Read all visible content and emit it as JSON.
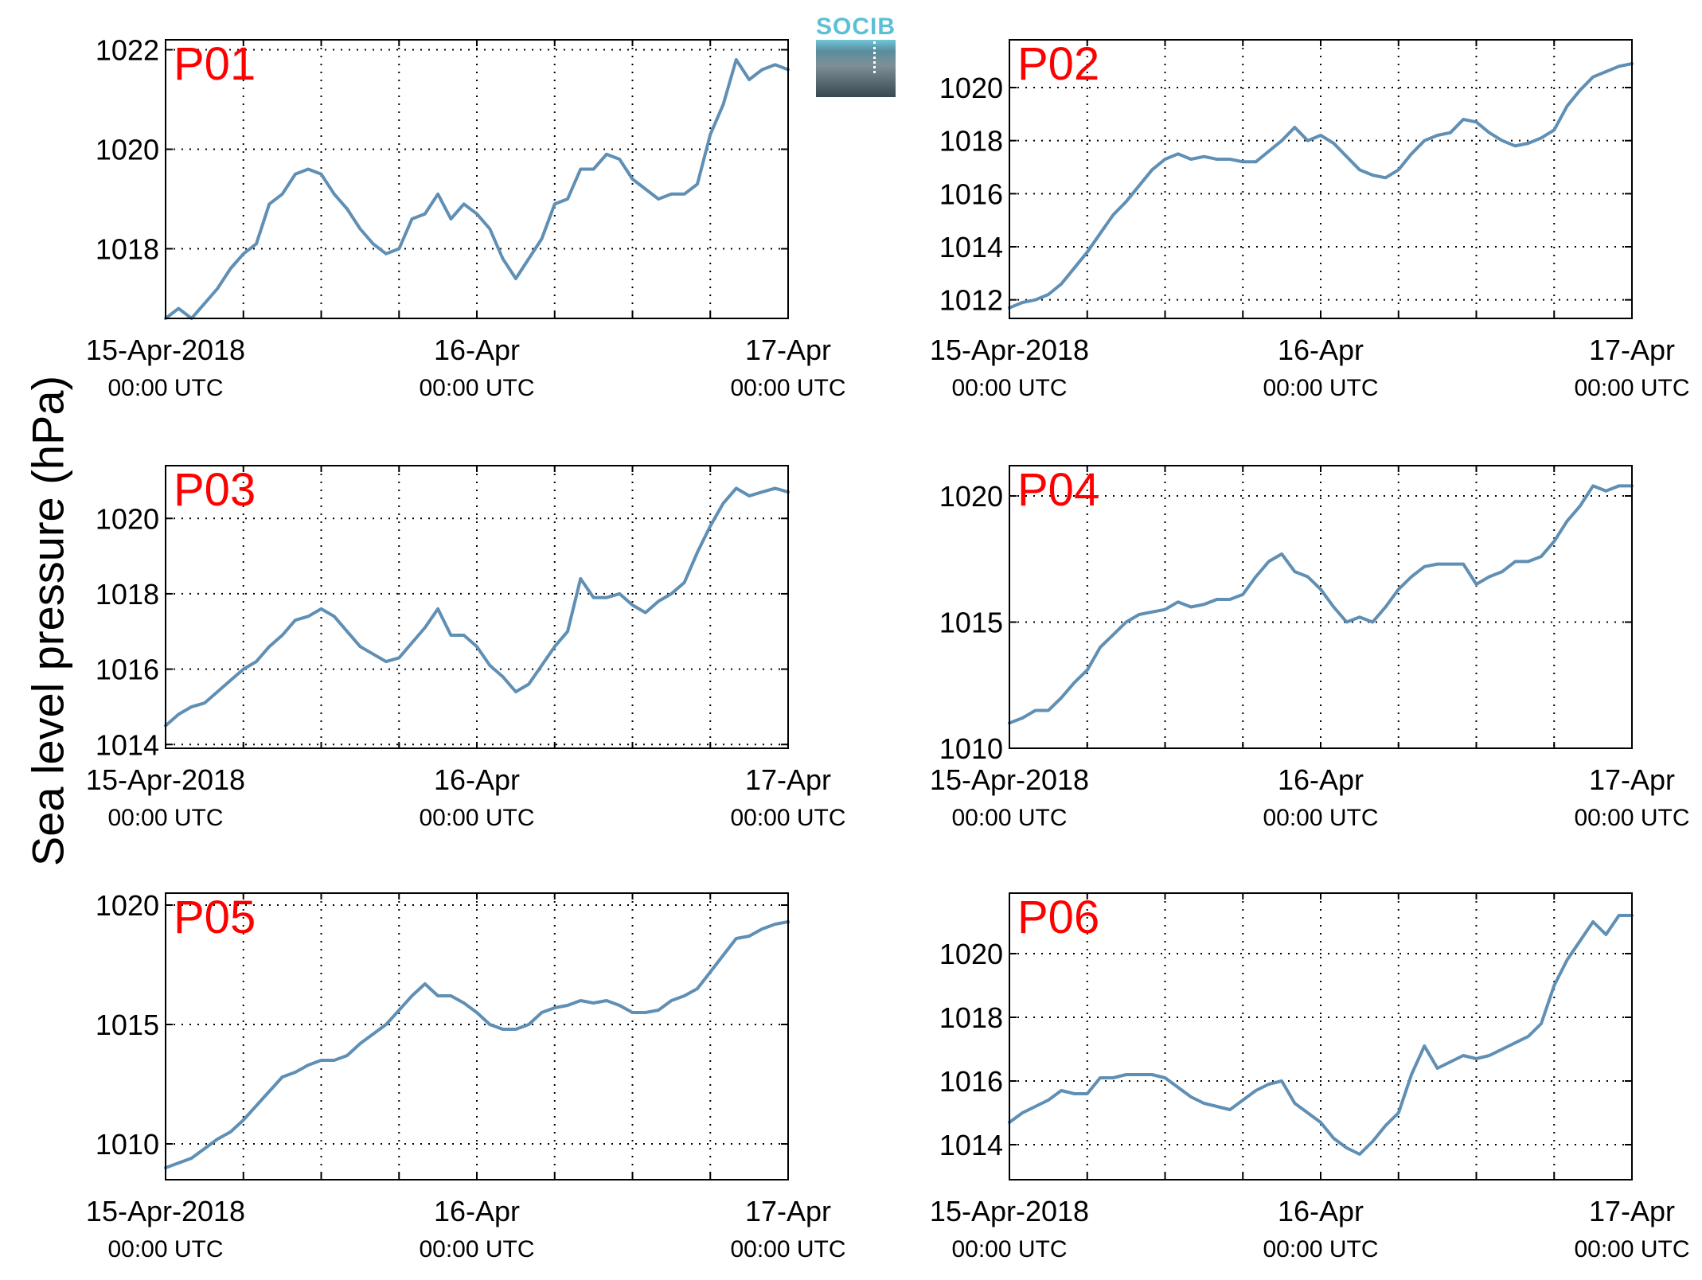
{
  "figure": {
    "ylabel": "Sea level pressure (hPa)",
    "logo_text": "SOCIB",
    "line_color": "#5f8fb4",
    "title_color": "#ff0000"
  },
  "chart_data": [
    {
      "type": "line",
      "title": "P01",
      "xlabel": "",
      "ylabel": "",
      "xlim": [
        "15-Apr-2018 00:00 UTC",
        "17-Apr 00:00 UTC"
      ],
      "x_ticks": [
        {
          "line1": "15-Apr-2018",
          "line2": "00:00 UTC"
        },
        {
          "line1": "16-Apr",
          "line2": "00:00 UTC"
        },
        {
          "line1": "17-Apr",
          "line2": "00:00 UTC"
        }
      ],
      "ylim": [
        1016.6,
        1022.2
      ],
      "yticks": [
        1018,
        1020,
        1022
      ],
      "grid": true,
      "series": [
        {
          "x_hours": [
            0,
            1,
            2,
            3,
            4,
            5,
            6,
            7,
            8,
            9,
            10,
            11,
            12,
            13,
            14,
            15,
            16,
            17,
            18,
            19,
            20,
            21,
            22,
            23,
            24,
            25,
            26,
            27,
            28,
            29,
            30,
            31,
            32,
            33,
            34,
            35,
            36,
            37,
            38,
            39,
            40,
            41,
            42,
            43,
            44,
            45,
            46,
            47,
            48
          ],
          "values": [
            1016.6,
            1016.8,
            1016.6,
            1016.9,
            1017.2,
            1017.6,
            1017.9,
            1018.1,
            1018.9,
            1019.1,
            1019.5,
            1019.6,
            1019.5,
            1019.1,
            1018.8,
            1018.4,
            1018.1,
            1017.9,
            1018.0,
            1018.6,
            1018.7,
            1019.1,
            1018.6,
            1018.9,
            1018.7,
            1018.4,
            1017.8,
            1017.4,
            1017.8,
            1018.2,
            1018.9,
            1019.0,
            1019.6,
            1019.6,
            1019.9,
            1019.8,
            1019.4,
            1019.2,
            1019.0,
            1019.1,
            1019.1,
            1019.3,
            1020.3,
            1020.9,
            1021.8,
            1021.4,
            1021.6,
            1021.7,
            1021.6
          ]
        }
      ]
    },
    {
      "type": "line",
      "title": "P02",
      "xlabel": "",
      "ylabel": "",
      "xlim": [
        "15-Apr-2018 00:00 UTC",
        "17-Apr 00:00 UTC"
      ],
      "x_ticks": [
        {
          "line1": "15-Apr-2018",
          "line2": "00:00 UTC"
        },
        {
          "line1": "16-Apr",
          "line2": "00:00 UTC"
        },
        {
          "line1": "17-Apr",
          "line2": "00:00 UTC"
        }
      ],
      "ylim": [
        1011.3,
        1021.8
      ],
      "yticks": [
        1012,
        1014,
        1016,
        1018,
        1020
      ],
      "grid": true,
      "series": [
        {
          "x_hours": [
            0,
            1,
            2,
            3,
            4,
            5,
            6,
            7,
            8,
            9,
            10,
            11,
            12,
            13,
            14,
            15,
            16,
            17,
            18,
            19,
            20,
            21,
            22,
            23,
            24,
            25,
            26,
            27,
            28,
            29,
            30,
            31,
            32,
            33,
            34,
            35,
            36,
            37,
            38,
            39,
            40,
            41,
            42,
            43,
            44,
            45,
            46,
            47,
            48
          ],
          "values": [
            1011.7,
            1011.9,
            1012.0,
            1012.2,
            1012.6,
            1013.2,
            1013.8,
            1014.5,
            1015.2,
            1015.7,
            1016.3,
            1016.9,
            1017.3,
            1017.5,
            1017.3,
            1017.4,
            1017.3,
            1017.3,
            1017.2,
            1017.2,
            1017.6,
            1018.0,
            1018.5,
            1018.0,
            1018.2,
            1017.9,
            1017.4,
            1016.9,
            1016.7,
            1016.6,
            1016.9,
            1017.5,
            1018.0,
            1018.2,
            1018.3,
            1018.8,
            1018.7,
            1018.3,
            1018.0,
            1017.8,
            1017.9,
            1018.1,
            1018.4,
            1019.3,
            1019.9,
            1020.4,
            1020.6,
            1020.8,
            1020.9
          ]
        }
      ]
    },
    {
      "type": "line",
      "title": "P03",
      "xlabel": "",
      "ylabel": "",
      "xlim": [
        "15-Apr-2018 00:00 UTC",
        "17-Apr 00:00 UTC"
      ],
      "x_ticks": [
        {
          "line1": "15-Apr-2018",
          "line2": "00:00 UTC"
        },
        {
          "line1": "16-Apr",
          "line2": "00:00 UTC"
        },
        {
          "line1": "17-Apr",
          "line2": "00:00 UTC"
        }
      ],
      "ylim": [
        1013.9,
        1021.4
      ],
      "yticks": [
        1014,
        1016,
        1018,
        1020
      ],
      "grid": true,
      "series": [
        {
          "x_hours": [
            0,
            1,
            2,
            3,
            4,
            5,
            6,
            7,
            8,
            9,
            10,
            11,
            12,
            13,
            14,
            15,
            16,
            17,
            18,
            19,
            20,
            21,
            22,
            23,
            24,
            25,
            26,
            27,
            28,
            29,
            30,
            31,
            32,
            33,
            34,
            35,
            36,
            37,
            38,
            39,
            40,
            41,
            42,
            43,
            44,
            45,
            46,
            47,
            48
          ],
          "values": [
            1014.5,
            1014.8,
            1015.0,
            1015.1,
            1015.4,
            1015.7,
            1016.0,
            1016.2,
            1016.6,
            1016.9,
            1017.3,
            1017.4,
            1017.6,
            1017.4,
            1017.0,
            1016.6,
            1016.4,
            1016.2,
            1016.3,
            1016.7,
            1017.1,
            1017.6,
            1016.9,
            1016.9,
            1016.6,
            1016.1,
            1015.8,
            1015.4,
            1015.6,
            1016.1,
            1016.6,
            1017.0,
            1018.4,
            1017.9,
            1017.9,
            1018.0,
            1017.7,
            1017.5,
            1017.8,
            1018.0,
            1018.3,
            1019.1,
            1019.8,
            1020.4,
            1020.8,
            1020.6,
            1020.7,
            1020.8,
            1020.7
          ]
        }
      ]
    },
    {
      "type": "line",
      "title": "P04",
      "xlabel": "",
      "ylabel": "",
      "xlim": [
        "15-Apr-2018 00:00 UTC",
        "17-Apr 00:00 UTC"
      ],
      "x_ticks": [
        {
          "line1": "15-Apr-2018",
          "line2": "00:00 UTC"
        },
        {
          "line1": "16-Apr",
          "line2": "00:00 UTC"
        },
        {
          "line1": "17-Apr",
          "line2": "00:00 UTC"
        }
      ],
      "ylim": [
        1010.0,
        1021.2
      ],
      "yticks": [
        1010,
        1015,
        1020
      ],
      "grid": true,
      "series": [
        {
          "x_hours": [
            0,
            1,
            2,
            3,
            4,
            5,
            6,
            7,
            8,
            9,
            10,
            11,
            12,
            13,
            14,
            15,
            16,
            17,
            18,
            19,
            20,
            21,
            22,
            23,
            24,
            25,
            26,
            27,
            28,
            29,
            30,
            31,
            32,
            33,
            34,
            35,
            36,
            37,
            38,
            39,
            40,
            41,
            42,
            43,
            44,
            45,
            46,
            47,
            48
          ],
          "values": [
            1011.0,
            1011.2,
            1011.5,
            1011.5,
            1012.0,
            1012.6,
            1013.1,
            1014.0,
            1014.5,
            1015.0,
            1015.3,
            1015.4,
            1015.5,
            1015.8,
            1015.6,
            1015.7,
            1015.9,
            1015.9,
            1016.1,
            1016.8,
            1017.4,
            1017.7,
            1017.0,
            1016.8,
            1016.3,
            1015.6,
            1015.0,
            1015.2,
            1015.0,
            1015.6,
            1016.3,
            1016.8,
            1017.2,
            1017.3,
            1017.3,
            1017.3,
            1016.5,
            1016.8,
            1017.0,
            1017.4,
            1017.4,
            1017.6,
            1018.2,
            1019.0,
            1019.6,
            1020.4,
            1020.2,
            1020.4,
            1020.4
          ]
        }
      ]
    },
    {
      "type": "line",
      "title": "P05",
      "xlabel": "",
      "ylabel": "",
      "xlim": [
        "15-Apr-2018 00:00 UTC",
        "17-Apr 00:00 UTC"
      ],
      "x_ticks": [
        {
          "line1": "15-Apr-2018",
          "line2": "00:00 UTC"
        },
        {
          "line1": "16-Apr",
          "line2": "00:00 UTC"
        },
        {
          "line1": "17-Apr",
          "line2": "00:00 UTC"
        }
      ],
      "ylim": [
        1008.5,
        1020.5
      ],
      "yticks": [
        1010,
        1015,
        1020
      ],
      "grid": true,
      "series": [
        {
          "x_hours": [
            0,
            1,
            2,
            3,
            4,
            5,
            6,
            7,
            8,
            9,
            10,
            11,
            12,
            13,
            14,
            15,
            16,
            17,
            18,
            19,
            20,
            21,
            22,
            23,
            24,
            25,
            26,
            27,
            28,
            29,
            30,
            31,
            32,
            33,
            34,
            35,
            36,
            37,
            38,
            39,
            40,
            41,
            42,
            43,
            44,
            45,
            46,
            47,
            48
          ],
          "values": [
            1009.0,
            1009.2,
            1009.4,
            1009.8,
            1010.2,
            1010.5,
            1011.0,
            1011.6,
            1012.2,
            1012.8,
            1013.0,
            1013.3,
            1013.5,
            1013.5,
            1013.7,
            1014.2,
            1014.6,
            1015.0,
            1015.6,
            1016.2,
            1016.7,
            1016.2,
            1016.2,
            1015.9,
            1015.5,
            1015.0,
            1014.8,
            1014.8,
            1015.0,
            1015.5,
            1015.7,
            1015.8,
            1016.0,
            1015.9,
            1016.0,
            1015.8,
            1015.5,
            1015.5,
            1015.6,
            1016.0,
            1016.2,
            1016.5,
            1017.2,
            1017.9,
            1018.6,
            1018.7,
            1019.0,
            1019.2,
            1019.3
          ]
        }
      ]
    },
    {
      "type": "line",
      "title": "P06",
      "xlabel": "",
      "ylabel": "",
      "xlim": [
        "15-Apr-2018 00:00 UTC",
        "17-Apr 00:00 UTC"
      ],
      "x_ticks": [
        {
          "line1": "15-Apr-2018",
          "line2": "00:00 UTC"
        },
        {
          "line1": "16-Apr",
          "line2": "00:00 UTC"
        },
        {
          "line1": "17-Apr",
          "line2": "00:00 UTC"
        }
      ],
      "ylim": [
        1012.9,
        1021.9
      ],
      "yticks": [
        1014,
        1016,
        1018,
        1020
      ],
      "grid": true,
      "series": [
        {
          "x_hours": [
            0,
            1,
            2,
            3,
            4,
            5,
            6,
            7,
            8,
            9,
            10,
            11,
            12,
            13,
            14,
            15,
            16,
            17,
            18,
            19,
            20,
            21,
            22,
            23,
            24,
            25,
            26,
            27,
            28,
            29,
            30,
            31,
            32,
            33,
            34,
            35,
            36,
            37,
            38,
            39,
            40,
            41,
            42,
            43,
            44,
            45,
            46,
            47,
            48
          ],
          "values": [
            1014.7,
            1015.0,
            1015.2,
            1015.4,
            1015.7,
            1015.6,
            1015.6,
            1016.1,
            1016.1,
            1016.2,
            1016.2,
            1016.2,
            1016.1,
            1015.8,
            1015.5,
            1015.3,
            1015.2,
            1015.1,
            1015.4,
            1015.7,
            1015.9,
            1016.0,
            1015.3,
            1015.0,
            1014.7,
            1014.2,
            1013.9,
            1013.7,
            1014.1,
            1014.6,
            1015.0,
            1016.2,
            1017.1,
            1016.4,
            1016.6,
            1016.8,
            1016.7,
            1016.8,
            1017.0,
            1017.2,
            1017.4,
            1017.8,
            1019.0,
            1019.8,
            1020.4,
            1021.0,
            1020.6,
            1021.2,
            1021.2
          ]
        }
      ]
    }
  ]
}
